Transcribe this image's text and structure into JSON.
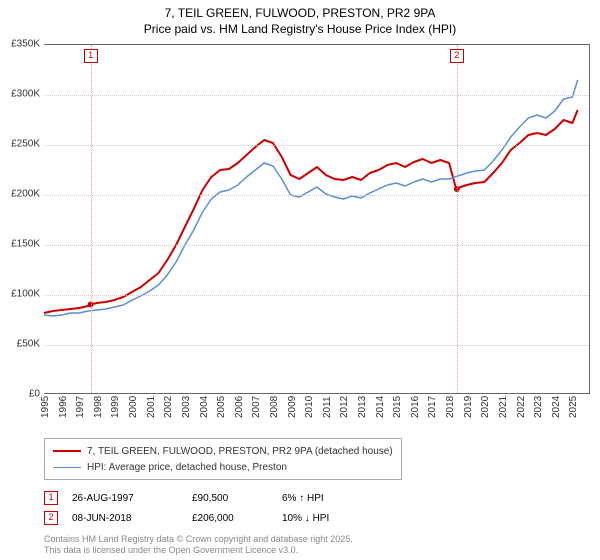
{
  "title_line1": "7, TEIL GREEN, FULWOOD, PRESTON, PR2 9PA",
  "title_line2": "Price paid vs. HM Land Registry's House Price Index (HPI)",
  "title_fontsize": 12,
  "chart": {
    "type": "line",
    "background_color": "#ffffff",
    "grid_color": "#cccccc",
    "plot_border_color": "#666666",
    "x": {
      "min": 1995,
      "max": 2026,
      "ticks": [
        1995,
        1996,
        1997,
        1998,
        1999,
        2000,
        2001,
        2002,
        2003,
        2004,
        2005,
        2006,
        2007,
        2008,
        2009,
        2010,
        2011,
        2012,
        2013,
        2014,
        2015,
        2016,
        2017,
        2018,
        2019,
        2020,
        2021,
        2022,
        2023,
        2024,
        2025
      ],
      "label_fontsize": 10
    },
    "y": {
      "min": 0,
      "max": 350000,
      "ticks": [
        0,
        50000,
        100000,
        150000,
        200000,
        250000,
        300000,
        350000
      ],
      "tick_labels": [
        "£0",
        "£50K",
        "£100K",
        "£150K",
        "£200K",
        "£250K",
        "£300K",
        "£350K"
      ],
      "label_fontsize": 10
    },
    "series": [
      {
        "id": "price_paid",
        "label": "7, TEIL GREEN, FULWOOD, PRESTON, PR2 9PA (detached house)",
        "color": "#cc0000",
        "line_width": 2,
        "data": [
          [
            1995.0,
            82000
          ],
          [
            1995.5,
            84000
          ],
          [
            1996.0,
            85000
          ],
          [
            1996.5,
            86000
          ],
          [
            1997.0,
            87000
          ],
          [
            1997.5,
            89000
          ],
          [
            1997.65,
            90500
          ],
          [
            1998.0,
            92000
          ],
          [
            1998.5,
            93000
          ],
          [
            1999.0,
            95000
          ],
          [
            1999.5,
            98000
          ],
          [
            2000.0,
            103000
          ],
          [
            2000.5,
            108000
          ],
          [
            2001.0,
            115000
          ],
          [
            2001.5,
            122000
          ],
          [
            2002.0,
            135000
          ],
          [
            2002.5,
            150000
          ],
          [
            2003.0,
            168000
          ],
          [
            2003.5,
            186000
          ],
          [
            2004.0,
            205000
          ],
          [
            2004.5,
            218000
          ],
          [
            2005.0,
            225000
          ],
          [
            2005.5,
            226000
          ],
          [
            2006.0,
            232000
          ],
          [
            2006.5,
            240000
          ],
          [
            2007.0,
            248000
          ],
          [
            2007.5,
            255000
          ],
          [
            2008.0,
            252000
          ],
          [
            2008.5,
            238000
          ],
          [
            2009.0,
            220000
          ],
          [
            2009.5,
            216000
          ],
          [
            2010.0,
            222000
          ],
          [
            2010.5,
            228000
          ],
          [
            2011.0,
            220000
          ],
          [
            2011.5,
            216000
          ],
          [
            2012.0,
            215000
          ],
          [
            2012.5,
            218000
          ],
          [
            2013.0,
            215000
          ],
          [
            2013.5,
            222000
          ],
          [
            2014.0,
            225000
          ],
          [
            2014.5,
            230000
          ],
          [
            2015.0,
            232000
          ],
          [
            2015.5,
            228000
          ],
          [
            2016.0,
            233000
          ],
          [
            2016.5,
            236000
          ],
          [
            2017.0,
            232000
          ],
          [
            2017.5,
            235000
          ],
          [
            2018.0,
            232000
          ],
          [
            2018.4,
            206000
          ],
          [
            2018.5,
            207000
          ],
          [
            2019.0,
            210000
          ],
          [
            2019.5,
            212000
          ],
          [
            2020.0,
            213000
          ],
          [
            2020.5,
            222000
          ],
          [
            2021.0,
            232000
          ],
          [
            2021.5,
            245000
          ],
          [
            2022.0,
            252000
          ],
          [
            2022.5,
            260000
          ],
          [
            2023.0,
            262000
          ],
          [
            2023.5,
            260000
          ],
          [
            2024.0,
            266000
          ],
          [
            2024.5,
            275000
          ],
          [
            2025.0,
            272000
          ],
          [
            2025.3,
            285000
          ]
        ]
      },
      {
        "id": "hpi",
        "label": "HPI: Average price, detached house, Preston",
        "color": "#5b8fd6",
        "line_width": 1.5,
        "data": [
          [
            1995.0,
            80000
          ],
          [
            1995.5,
            79000
          ],
          [
            1996.0,
            80000
          ],
          [
            1996.5,
            82000
          ],
          [
            1997.0,
            82000
          ],
          [
            1997.5,
            84000
          ],
          [
            1998.0,
            85000
          ],
          [
            1998.5,
            86000
          ],
          [
            1999.0,
            88000
          ],
          [
            1999.5,
            90000
          ],
          [
            2000.0,
            95000
          ],
          [
            2000.5,
            99000
          ],
          [
            2001.0,
            104000
          ],
          [
            2001.5,
            110000
          ],
          [
            2002.0,
            120000
          ],
          [
            2002.5,
            133000
          ],
          [
            2003.0,
            150000
          ],
          [
            2003.5,
            165000
          ],
          [
            2004.0,
            183000
          ],
          [
            2004.5,
            196000
          ],
          [
            2005.0,
            203000
          ],
          [
            2005.5,
            205000
          ],
          [
            2006.0,
            210000
          ],
          [
            2006.5,
            218000
          ],
          [
            2007.0,
            225000
          ],
          [
            2007.5,
            232000
          ],
          [
            2008.0,
            229000
          ],
          [
            2008.5,
            216000
          ],
          [
            2009.0,
            200000
          ],
          [
            2009.5,
            198000
          ],
          [
            2010.0,
            203000
          ],
          [
            2010.5,
            208000
          ],
          [
            2011.0,
            201000
          ],
          [
            2011.5,
            198000
          ],
          [
            2012.0,
            196000
          ],
          [
            2012.5,
            199000
          ],
          [
            2013.0,
            197000
          ],
          [
            2013.5,
            202000
          ],
          [
            2014.0,
            206000
          ],
          [
            2014.5,
            210000
          ],
          [
            2015.0,
            212000
          ],
          [
            2015.5,
            209000
          ],
          [
            2016.0,
            213000
          ],
          [
            2016.5,
            216000
          ],
          [
            2017.0,
            213000
          ],
          [
            2017.5,
            216000
          ],
          [
            2018.0,
            216000
          ],
          [
            2018.5,
            219000
          ],
          [
            2019.0,
            222000
          ],
          [
            2019.5,
            224000
          ],
          [
            2020.0,
            225000
          ],
          [
            2020.5,
            234000
          ],
          [
            2021.0,
            245000
          ],
          [
            2021.5,
            258000
          ],
          [
            2022.0,
            268000
          ],
          [
            2022.5,
            277000
          ],
          [
            2023.0,
            280000
          ],
          [
            2023.5,
            277000
          ],
          [
            2024.0,
            284000
          ],
          [
            2024.5,
            296000
          ],
          [
            2025.0,
            298000
          ],
          [
            2025.3,
            315000
          ]
        ]
      }
    ],
    "markers": [
      {
        "n": "1",
        "x": 1997.65,
        "y": 90500,
        "color": "#cc0000",
        "line_color": "#e6a0a0"
      },
      {
        "n": "2",
        "x": 2018.44,
        "y": 206000,
        "color": "#cc0000",
        "line_color": "#e6a0a0"
      }
    ]
  },
  "legend": {
    "border_color": "#aaaaaa",
    "items": [
      {
        "series": "price_paid"
      },
      {
        "series": "hpi"
      }
    ]
  },
  "transactions": [
    {
      "n": "1",
      "color": "#cc0000",
      "date": "26-AUG-1997",
      "price": "£90,500",
      "diff": "6% ↑ HPI"
    },
    {
      "n": "2",
      "color": "#cc0000",
      "date": "08-JUN-2018",
      "price": "£206,000",
      "diff": "10% ↓ HPI"
    }
  ],
  "footnote_line1": "Contains HM Land Registry data © Crown copyright and database right 2025.",
  "footnote_line2": "This data is licensed under the Open Government Licence v3.0."
}
